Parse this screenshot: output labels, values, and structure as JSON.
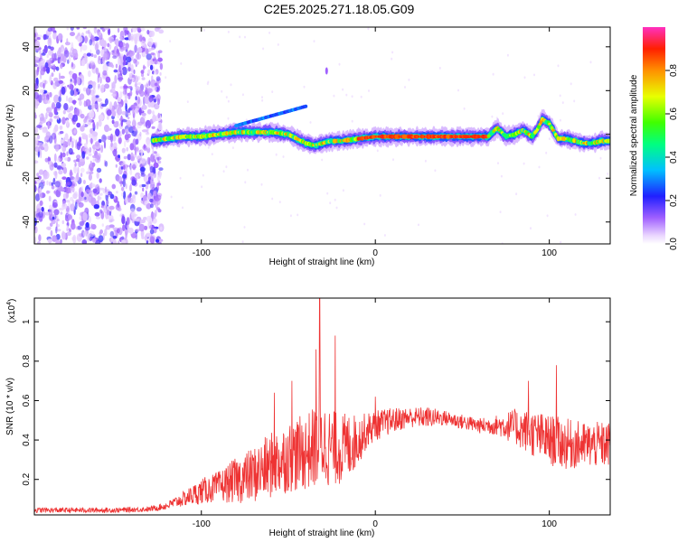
{
  "title": "C2E5.2025.271.18.05.G09",
  "chart_data": [
    {
      "type": "heatmap",
      "xlabel": "Height of straight line (km)",
      "ylabel": "Frequency (Hz)",
      "xlim": [
        -196,
        135
      ],
      "ylim": [
        -50,
        49
      ],
      "xticks": [
        -100,
        0,
        100
      ],
      "yticks": [
        -40,
        -20,
        0,
        20,
        40
      ],
      "colorbar": {
        "label": "Normalized spectral amplitude",
        "range": [
          0,
          1
        ],
        "ticks": [
          0.0,
          0.2,
          0.4,
          0.6,
          0.8
        ],
        "tick_labels": [
          "0.0",
          "0.2",
          "0.4",
          "0.6",
          "0.8"
        ]
      },
      "ridge": {
        "x": [
          -130,
          -120,
          -110,
          -100,
          -90,
          -80,
          -70,
          -60,
          -50,
          -45,
          -40,
          -35,
          -30,
          -25,
          -20,
          -10,
          0,
          10,
          20,
          30,
          40,
          50,
          60,
          65,
          70,
          75,
          80,
          85,
          90,
          93,
          96,
          100,
          105,
          110,
          115,
          120,
          125,
          130,
          135
        ],
        "y": [
          -3,
          -2,
          -1,
          -1,
          0,
          1,
          1,
          1,
          0,
          -2,
          -4,
          -5,
          -4,
          -3,
          -3,
          -2,
          -1,
          -1,
          -1,
          -1,
          -1,
          -1,
          -1,
          -1,
          3,
          -1,
          0,
          2,
          -1,
          2,
          7,
          5,
          -2,
          -2,
          -3,
          -4,
          -4,
          -3,
          -3
        ]
      },
      "noise_region_xlim": [
        -196,
        -123
      ],
      "ridge_peak_amplitude_xlim": [
        -10,
        65
      ]
    },
    {
      "type": "line",
      "xlabel": "Height of straight line (km)",
      "ylabel": "SNR (10 * v/v)",
      "y_multiplier": "(x10",
      "y_multiplier_exp": "4",
      "xlim": [
        -196,
        135
      ],
      "ylim": [
        0.02,
        1.12
      ],
      "xticks": [
        -100,
        0,
        100
      ],
      "yticks": [
        0.2,
        0.4,
        0.6,
        0.8,
        1
      ],
      "ytick_labels": [
        "0.2",
        "0.4",
        "0.6",
        "0.8",
        "1"
      ],
      "series_color": "#ee3333",
      "envelope": {
        "x": [
          -196,
          -150,
          -130,
          -120,
          -110,
          -100,
          -90,
          -80,
          -70,
          -60,
          -50,
          -40,
          -35,
          -30,
          -25,
          -20,
          -15,
          -10,
          -5,
          0,
          10,
          20,
          30,
          40,
          50,
          60,
          70,
          80,
          90,
          100,
          110,
          120,
          135
        ],
        "base": [
          0.04,
          0.04,
          0.045,
          0.06,
          0.09,
          0.12,
          0.14,
          0.16,
          0.18,
          0.22,
          0.26,
          0.28,
          0.3,
          0.32,
          0.3,
          0.3,
          0.32,
          0.36,
          0.42,
          0.45,
          0.48,
          0.5,
          0.5,
          0.5,
          0.48,
          0.46,
          0.46,
          0.44,
          0.4,
          0.36,
          0.34,
          0.34,
          0.34
        ],
        "spread": [
          0.02,
          0.02,
          0.02,
          0.03,
          0.06,
          0.1,
          0.12,
          0.18,
          0.22,
          0.26,
          0.28,
          0.3,
          0.32,
          0.34,
          0.3,
          0.28,
          0.26,
          0.2,
          0.14,
          0.12,
          0.1,
          0.08,
          0.08,
          0.06,
          0.06,
          0.06,
          0.08,
          0.14,
          0.18,
          0.2,
          0.2,
          0.18,
          0.18
        ]
      },
      "spikes": [
        {
          "x": -32,
          "y": 1.12
        },
        {
          "x": -34,
          "y": 0.86
        },
        {
          "x": -23,
          "y": 0.93
        },
        {
          "x": -48,
          "y": 0.7
        },
        {
          "x": -58,
          "y": 0.64
        },
        {
          "x": 0,
          "y": 0.62
        },
        {
          "x": 104,
          "y": 0.78
        },
        {
          "x": 88,
          "y": 0.7
        }
      ]
    }
  ]
}
